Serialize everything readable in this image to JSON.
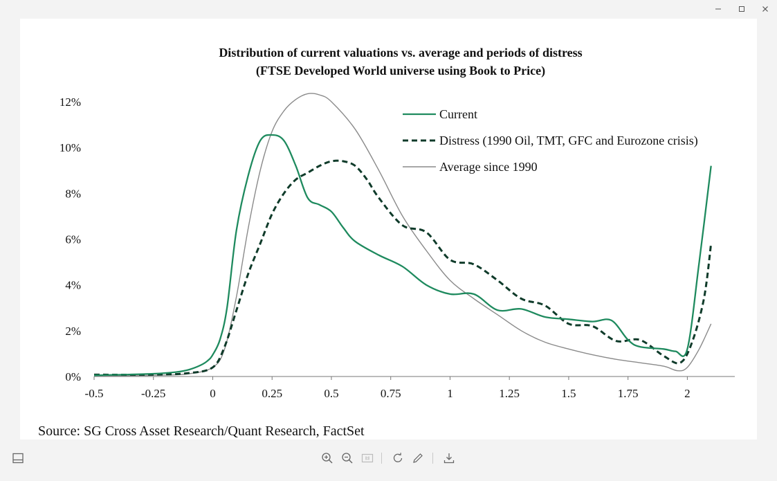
{
  "window": {
    "controls": [
      "minimize",
      "maximize",
      "close"
    ]
  },
  "chart_data": {
    "type": "line",
    "title": "Distribution of current valuations vs. average and periods of distress",
    "subtitle": "(FTSE Developed World universe using Book to Price)",
    "xlabel": "",
    "ylabel": "",
    "xlim": [
      -0.5,
      2.2
    ],
    "ylim": [
      0,
      12
    ],
    "x_ticks": [
      -0.5,
      -0.25,
      0,
      0.25,
      0.5,
      0.75,
      1,
      1.25,
      1.5,
      1.75,
      2
    ],
    "x_tick_labels": [
      "-0.5",
      "-0.25",
      "0",
      "0.25",
      "0.5",
      "0.75",
      "1",
      "1.25",
      "1.5",
      "1.75",
      "2"
    ],
    "y_ticks": [
      0,
      2,
      4,
      6,
      8,
      10,
      12
    ],
    "y_tick_labels": [
      "0%",
      "2%",
      "4%",
      "6%",
      "8%",
      "10%",
      "12%"
    ],
    "grid": false,
    "legend_position": "top-right",
    "series": [
      {
        "name": "Current",
        "style": "solid",
        "color": "#1e8a5e",
        "points": [
          [
            -0.5,
            0.05
          ],
          [
            -0.25,
            0.12
          ],
          [
            -0.15,
            0.2
          ],
          [
            -0.1,
            0.3
          ],
          [
            -0.05,
            0.5
          ],
          [
            -0.02,
            0.7
          ],
          [
            0,
            0.95
          ],
          [
            0.03,
            1.6
          ],
          [
            0.06,
            3.0
          ],
          [
            0.1,
            6.4
          ],
          [
            0.15,
            8.8
          ],
          [
            0.2,
            10.3
          ],
          [
            0.25,
            10.55
          ],
          [
            0.3,
            10.3
          ],
          [
            0.35,
            9.2
          ],
          [
            0.4,
            7.8
          ],
          [
            0.45,
            7.5
          ],
          [
            0.5,
            7.2
          ],
          [
            0.55,
            6.5
          ],
          [
            0.6,
            5.9
          ],
          [
            0.7,
            5.3
          ],
          [
            0.8,
            4.8
          ],
          [
            0.9,
            4.0
          ],
          [
            1.0,
            3.6
          ],
          [
            1.1,
            3.6
          ],
          [
            1.2,
            2.9
          ],
          [
            1.3,
            2.95
          ],
          [
            1.4,
            2.6
          ],
          [
            1.5,
            2.5
          ],
          [
            1.6,
            2.4
          ],
          [
            1.68,
            2.45
          ],
          [
            1.75,
            1.6
          ],
          [
            1.8,
            1.3
          ],
          [
            1.9,
            1.2
          ],
          [
            1.95,
            1.1
          ],
          [
            2.0,
            1.2
          ],
          [
            2.05,
            5.0
          ],
          [
            2.1,
            9.2
          ]
        ]
      },
      {
        "name": "Distress (1990 Oil, TMT, GFC and Eurozone crisis)",
        "style": "dashed",
        "color": "#0f3b2a",
        "points": [
          [
            -0.5,
            0.08
          ],
          [
            -0.25,
            0.08
          ],
          [
            -0.1,
            0.15
          ],
          [
            0,
            0.4
          ],
          [
            0.05,
            1.3
          ],
          [
            0.1,
            2.9
          ],
          [
            0.15,
            4.5
          ],
          [
            0.2,
            5.8
          ],
          [
            0.25,
            7.1
          ],
          [
            0.3,
            8.0
          ],
          [
            0.35,
            8.6
          ],
          [
            0.4,
            8.9
          ],
          [
            0.45,
            9.2
          ],
          [
            0.5,
            9.4
          ],
          [
            0.55,
            9.4
          ],
          [
            0.6,
            9.2
          ],
          [
            0.65,
            8.6
          ],
          [
            0.7,
            7.8
          ],
          [
            0.8,
            6.6
          ],
          [
            0.9,
            6.3
          ],
          [
            1.0,
            5.1
          ],
          [
            1.1,
            4.9
          ],
          [
            1.2,
            4.2
          ],
          [
            1.3,
            3.4
          ],
          [
            1.4,
            3.1
          ],
          [
            1.5,
            2.3
          ],
          [
            1.6,
            2.2
          ],
          [
            1.7,
            1.55
          ],
          [
            1.8,
            1.6
          ],
          [
            1.9,
            0.9
          ],
          [
            1.97,
            0.6
          ],
          [
            2.02,
            1.5
          ],
          [
            2.07,
            3.4
          ],
          [
            2.1,
            5.8
          ]
        ]
      },
      {
        "name": "Average since 1990",
        "style": "solid",
        "color": "#8a8a8a",
        "points": [
          [
            -0.5,
            0.03
          ],
          [
            -0.25,
            0.05
          ],
          [
            -0.1,
            0.12
          ],
          [
            0,
            0.4
          ],
          [
            0.05,
            1.2
          ],
          [
            0.1,
            3.5
          ],
          [
            0.15,
            6.5
          ],
          [
            0.2,
            9.0
          ],
          [
            0.25,
            10.7
          ],
          [
            0.3,
            11.6
          ],
          [
            0.35,
            12.1
          ],
          [
            0.4,
            12.35
          ],
          [
            0.45,
            12.3
          ],
          [
            0.5,
            12.0
          ],
          [
            0.6,
            10.8
          ],
          [
            0.7,
            9.0
          ],
          [
            0.8,
            7.0
          ],
          [
            0.9,
            5.5
          ],
          [
            1.0,
            4.2
          ],
          [
            1.1,
            3.4
          ],
          [
            1.2,
            2.7
          ],
          [
            1.3,
            2.0
          ],
          [
            1.4,
            1.5
          ],
          [
            1.5,
            1.2
          ],
          [
            1.6,
            0.95
          ],
          [
            1.7,
            0.75
          ],
          [
            1.8,
            0.6
          ],
          [
            1.9,
            0.45
          ],
          [
            1.96,
            0.25
          ],
          [
            2.0,
            0.4
          ],
          [
            2.05,
            1.2
          ],
          [
            2.1,
            2.3
          ]
        ]
      }
    ]
  },
  "source": "Source: SG Cross Asset Research/Quant Research, FactSet",
  "toolbar": {
    "icons": [
      "panel-icon",
      "zoom-in-icon",
      "zoom-out-icon",
      "actual-size-icon",
      "rotate-icon",
      "edit-icon",
      "download-icon"
    ]
  }
}
